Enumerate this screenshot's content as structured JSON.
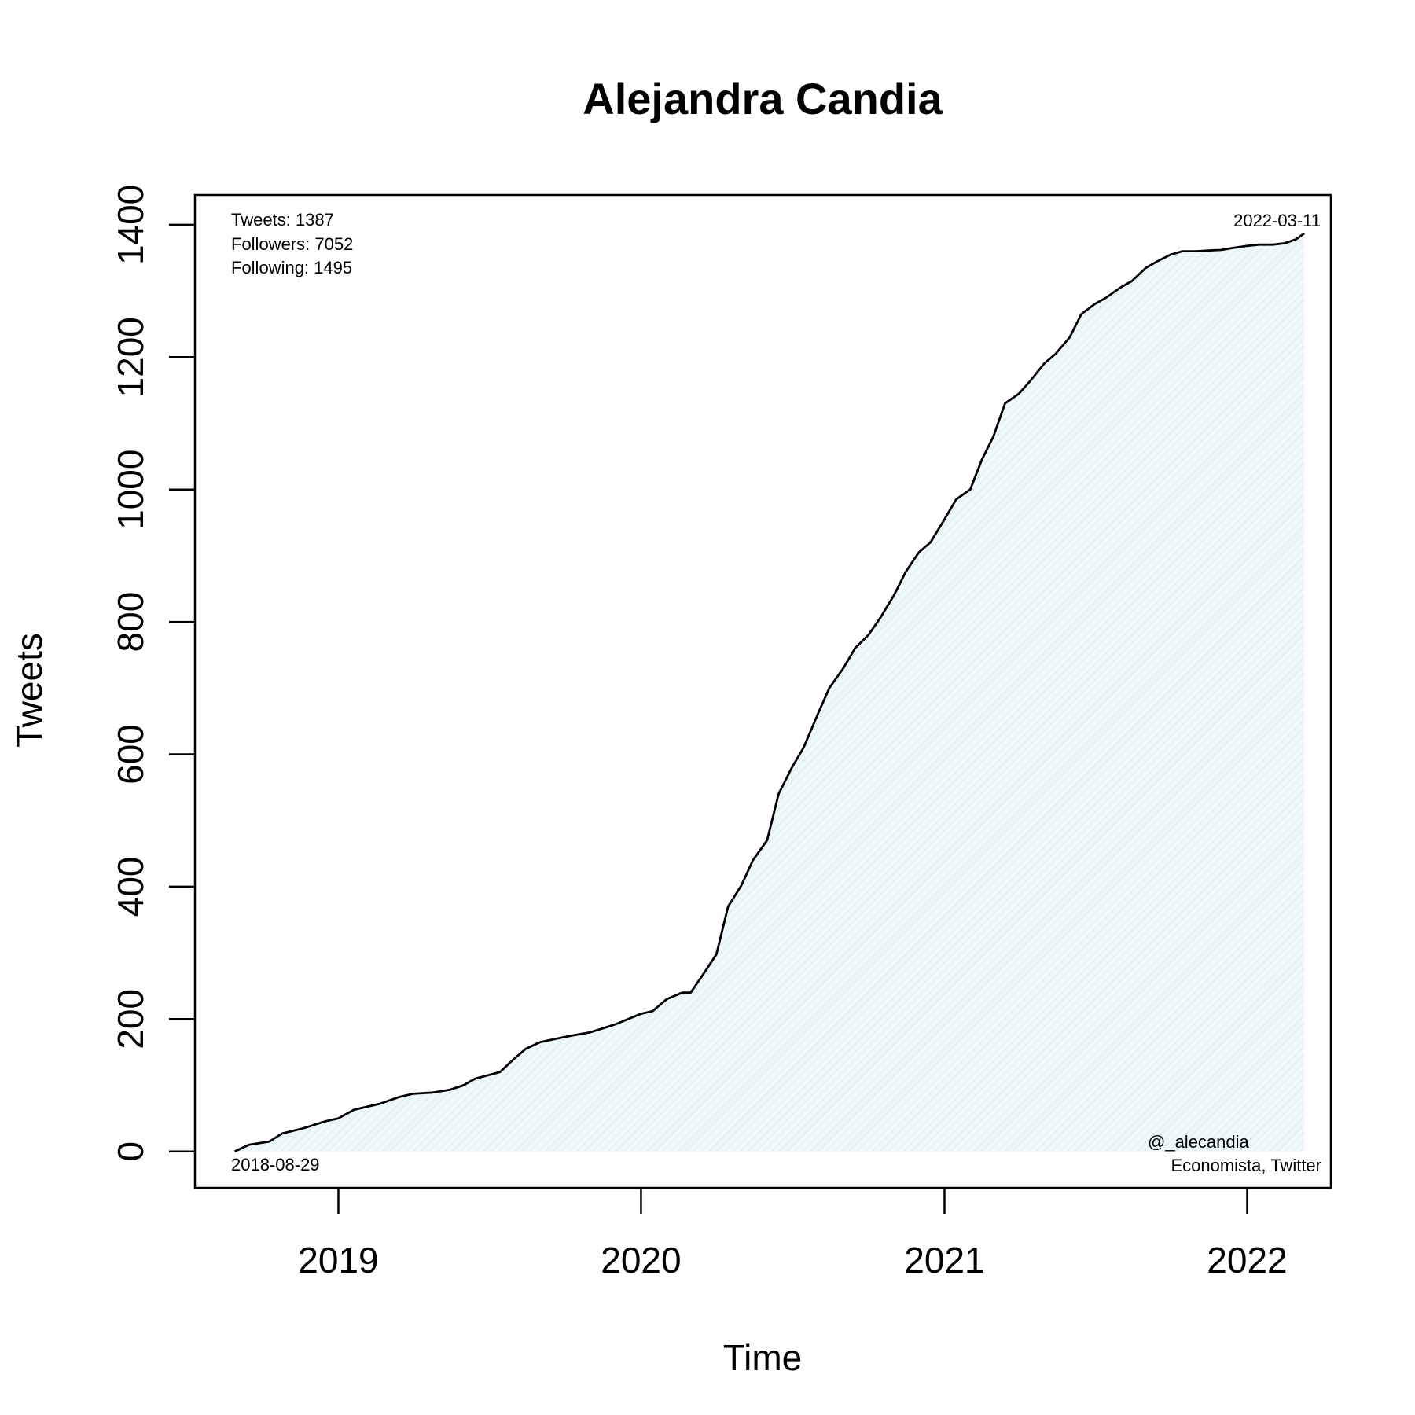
{
  "chart_data": {
    "type": "area",
    "title": "Alejandra Candia",
    "xlabel": "Time",
    "ylabel": "Tweets",
    "xlim": [
      "2018-07-12",
      "2022-04-12"
    ],
    "ylim": [
      -55,
      1445
    ],
    "grid": false,
    "x_ticks": [
      {
        "date": "2019-01-01",
        "label": "2019"
      },
      {
        "date": "2020-01-01",
        "label": "2020"
      },
      {
        "date": "2021-01-01",
        "label": "2021"
      },
      {
        "date": "2022-01-01",
        "label": "2022"
      }
    ],
    "y_ticks": [
      0,
      200,
      400,
      600,
      800,
      1000,
      1200,
      1400
    ],
    "colors": {
      "line": "#000000",
      "fill": "#e6f3f6",
      "frame": "#000000"
    },
    "annotations": {
      "stats": [
        "Tweets: 1387",
        "Followers: 7052",
        "Following: 1495"
      ],
      "start_date": "2018-08-29",
      "end_date": "2022-03-11",
      "handle": "@_alecandia",
      "bio": "Economista, Twitter"
    },
    "series": [
      {
        "x": [
          "2018-08-29",
          "2018-09-15",
          "2018-10-10",
          "2018-10-25",
          "2018-11-20",
          "2018-12-15",
          "2019-01-01",
          "2019-01-20",
          "2019-02-20",
          "2019-03-15",
          "2019-04-01",
          "2019-04-25",
          "2019-05-15",
          "2019-06-01",
          "2019-06-15",
          "2019-07-15",
          "2019-08-01",
          "2019-08-15",
          "2019-09-01",
          "2019-09-20",
          "2019-10-10",
          "2019-11-01",
          "2019-12-01",
          "2020-01-01",
          "2020-01-15",
          "2020-02-01",
          "2020-02-20",
          "2020-03-01",
          "2020-03-20",
          "2020-04-01",
          "2020-04-15",
          "2020-05-01",
          "2020-05-15",
          "2020-06-01",
          "2020-06-15",
          "2020-07-01",
          "2020-07-15",
          "2020-08-01",
          "2020-08-15",
          "2020-09-01",
          "2020-09-15",
          "2020-10-01",
          "2020-10-15",
          "2020-11-01",
          "2020-11-15",
          "2020-12-01",
          "2020-12-15",
          "2021-01-01",
          "2021-01-15",
          "2021-02-01",
          "2021-02-15",
          "2021-03-01",
          "2021-03-15",
          "2021-04-01",
          "2021-04-15",
          "2021-05-01",
          "2021-05-15",
          "2021-06-01",
          "2021-06-15",
          "2021-07-01",
          "2021-07-15",
          "2021-08-01",
          "2021-08-15",
          "2021-09-01",
          "2021-09-15",
          "2021-10-01",
          "2021-10-15",
          "2021-11-01",
          "2021-11-15",
          "2021-12-01",
          "2021-12-15",
          "2022-01-01",
          "2022-01-15",
          "2022-02-01",
          "2022-02-15",
          "2022-03-01",
          "2022-03-11"
        ],
        "y": [
          0,
          10,
          15,
          27,
          35,
          45,
          50,
          63,
          72,
          82,
          87,
          89,
          93,
          100,
          110,
          120,
          140,
          155,
          165,
          170,
          175,
          180,
          192,
          208,
          212,
          230,
          240,
          240,
          275,
          298,
          370,
          402,
          440,
          470,
          540,
          580,
          610,
          660,
          700,
          730,
          760,
          780,
          805,
          840,
          875,
          905,
          920,
          955,
          985,
          1000,
          1045,
          1080,
          1130,
          1145,
          1165,
          1190,
          1205,
          1230,
          1265,
          1280,
          1290,
          1305,
          1315,
          1335,
          1345,
          1355,
          1360,
          1360,
          1361,
          1362,
          1365,
          1368,
          1370,
          1370,
          1372,
          1378,
          1387
        ]
      }
    ]
  }
}
